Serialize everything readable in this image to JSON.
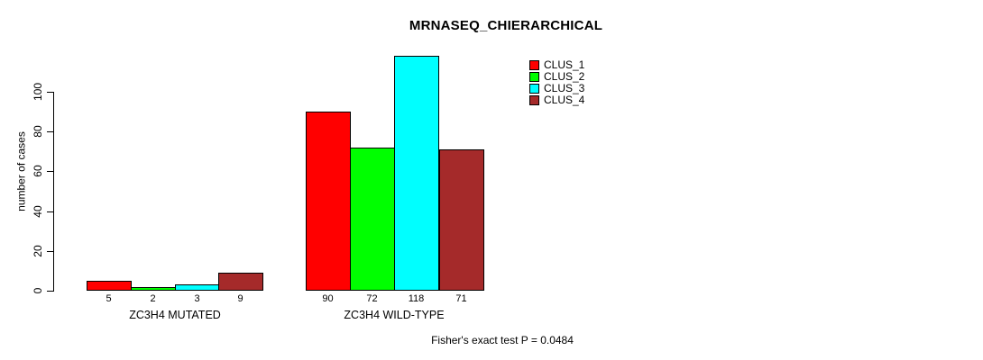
{
  "chart_data": {
    "type": "bar",
    "title": "MRNASEQ_CHIERARCHICAL",
    "ylabel": "number of cases",
    "xlabel": "",
    "yticks": [
      0,
      20,
      40,
      60,
      80,
      100
    ],
    "ylim": [
      0,
      120
    ],
    "grid": false,
    "legend_position": "top-right",
    "categories": [
      "ZC3H4 MUTATED",
      "ZC3H4 WILD-TYPE"
    ],
    "series": [
      {
        "name": "CLUS_1",
        "color": "#FF0000",
        "values": [
          5,
          90
        ]
      },
      {
        "name": "CLUS_2",
        "color": "#00FF00",
        "values": [
          2,
          72
        ]
      },
      {
        "name": "CLUS_3",
        "color": "#00FFFF",
        "values": [
          3,
          118
        ]
      },
      {
        "name": "CLUS_4",
        "color": "#A52A2A",
        "values": [
          9,
          71
        ]
      }
    ],
    "bar_value_labels": [
      [
        "5",
        "2",
        "3",
        "9"
      ],
      [
        "90",
        "72",
        "118",
        "71"
      ]
    ],
    "legend": [
      "CLUS_1",
      "CLUS_2",
      "CLUS_3",
      "CLUS_4"
    ],
    "annotation": "Fisher's exact test P = 0.0484"
  },
  "colors": {
    "background": "#FFFFFF",
    "axis": "#000000",
    "text": "#000000"
  }
}
